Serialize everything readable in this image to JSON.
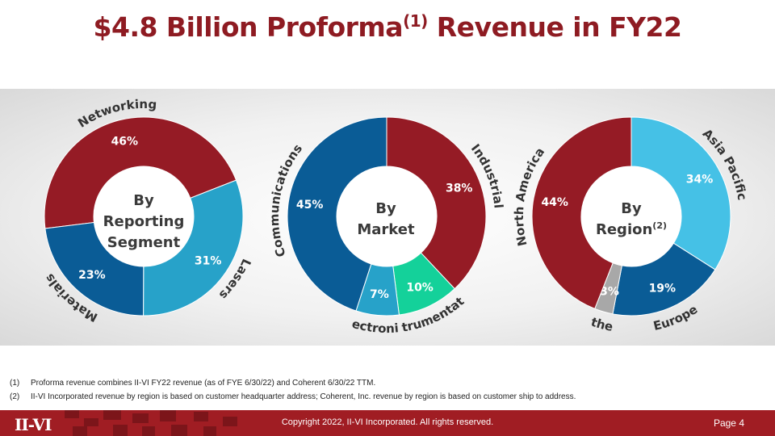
{
  "title": {
    "main": "$4.8 Billion Proforma",
    "sup": "(1)",
    "tail": " Revenue in FY22"
  },
  "chart_data": [
    {
      "type": "pie",
      "center_label": [
        "By",
        "Reporting",
        "Segment"
      ],
      "slices": [
        {
          "name": "Networking",
          "value": 46,
          "label": "46%",
          "color": "#951b25"
        },
        {
          "name": "Lasers",
          "value": 31,
          "label": "31%",
          "color": "#27a2c9"
        },
        {
          "name": "Materials",
          "value": 23,
          "label": "23%",
          "color": "#0a5c96"
        }
      ]
    },
    {
      "type": "pie",
      "center_label": [
        "By",
        "Market"
      ],
      "slices": [
        {
          "name": "Industrial",
          "value": 38,
          "label": "38%",
          "color": "#951b25"
        },
        {
          "name": "Instrumentation",
          "value": 10,
          "label": "10%",
          "color": "#14d19a"
        },
        {
          "name": "Electronics",
          "value": 7,
          "label": "7%",
          "color": "#27a2c9"
        },
        {
          "name": "Communications",
          "value": 45,
          "label": "45%",
          "color": "#0a5c96"
        }
      ]
    },
    {
      "type": "pie",
      "center_label": [
        "By",
        "Region"
      ],
      "center_label_sup": "(2)",
      "slices": [
        {
          "name": "Asia Pacific",
          "value": 34,
          "label": "34%",
          "color": "#45c1e6"
        },
        {
          "name": "Europe",
          "value": 19,
          "label": "19%",
          "color": "#0a5c96"
        },
        {
          "name": "Other",
          "value": 3,
          "label": "3%",
          "color": "#a8a8a8"
        },
        {
          "name": "North America",
          "value": 44,
          "label": "44%",
          "color": "#951b25"
        }
      ]
    }
  ],
  "footnotes": [
    {
      "num": "(1)",
      "text": "Proforma revenue combines II-VI FY22 revenue (as of FYE 6/30/22) and Coherent 6/30/22 TTM."
    },
    {
      "num": "(2)",
      "text": "II-VI Incorporated revenue by region is based on customer headquarter address; Coherent, Inc. revenue by region is based on customer ship to address."
    }
  ],
  "footer": {
    "logo": "II-VI",
    "copyright": "Copyright 2022, II-VI Incorporated. All rights reserved.",
    "page": "Page 4"
  }
}
